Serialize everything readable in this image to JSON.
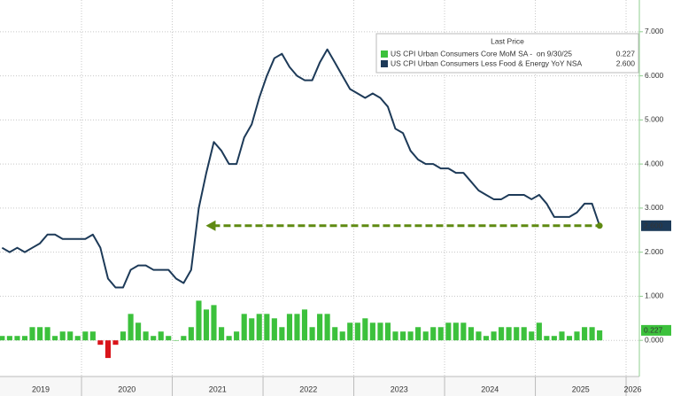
{
  "chart_data": {
    "type": "combo",
    "legend_title": "Last Price",
    "legend_position": "upper right",
    "grid": true,
    "x": [
      2019.125,
      2019.208,
      2019.292,
      2019.375,
      2019.458,
      2019.542,
      2019.625,
      2019.708,
      2019.792,
      2019.875,
      2019.958,
      2020.042,
      2020.125,
      2020.208,
      2020.292,
      2020.375,
      2020.458,
      2020.542,
      2020.625,
      2020.708,
      2020.792,
      2020.875,
      2020.958,
      2021.042,
      2021.125,
      2021.208,
      2021.292,
      2021.375,
      2021.458,
      2021.542,
      2021.625,
      2021.708,
      2021.792,
      2021.875,
      2021.958,
      2022.042,
      2022.125,
      2022.208,
      2022.292,
      2022.375,
      2022.458,
      2022.542,
      2022.625,
      2022.708,
      2022.792,
      2022.875,
      2022.958,
      2023.042,
      2023.125,
      2023.208,
      2023.292,
      2023.375,
      2023.458,
      2023.542,
      2023.625,
      2023.708,
      2023.792,
      2023.875,
      2023.958,
      2024.042,
      2024.125,
      2024.208,
      2024.292,
      2024.375,
      2024.458,
      2024.542,
      2024.625,
      2024.708,
      2024.792,
      2024.875,
      2024.958,
      2025.042,
      2025.125,
      2025.208,
      2025.292,
      2025.375,
      2025.458,
      2025.542,
      2025.625,
      2025.708
    ],
    "xlim": [
      2019.102,
      2026.146
    ],
    "xticks": [
      2019,
      2020,
      2021,
      2022,
      2023,
      2024,
      2025,
      2026
    ],
    "ylim": [
      -0.82,
      7.72
    ],
    "yticks": [
      {
        "value": 7,
        "label": "7.000"
      },
      {
        "value": 6,
        "label": "6.000"
      },
      {
        "value": 5,
        "label": "5.000"
      },
      {
        "value": 4,
        "label": "4.000"
      },
      {
        "value": 3,
        "label": "3.000"
      },
      {
        "value": 2,
        "label": "2.000"
      },
      {
        "value": 1,
        "label": "1.000"
      },
      {
        "value": 0,
        "label": "0.000"
      }
    ],
    "series": [
      {
        "name": "US CPI Urban Consumers Core MoM SA -  on 9/30/25",
        "kind": "bar",
        "color": "#3cc13c",
        "negative_color": "#d9141a",
        "last_label": "0.227",
        "values": [
          0.1,
          0.1,
          0.1,
          0.1,
          0.3,
          0.3,
          0.3,
          0.1,
          0.2,
          0.2,
          0.1,
          0.2,
          0.2,
          -0.1,
          -0.4,
          -0.1,
          0.2,
          0.6,
          0.4,
          0.2,
          0.1,
          0.2,
          0.1,
          0,
          0.1,
          0.3,
          0.9,
          0.7,
          0.8,
          0.3,
          0.1,
          0.2,
          0.6,
          0.5,
          0.6,
          0.6,
          0.5,
          0.3,
          0.6,
          0.6,
          0.7,
          0.3,
          0.6,
          0.6,
          0.3,
          0.2,
          0.4,
          0.4,
          0.5,
          0.4,
          0.4,
          0.4,
          0.2,
          0.2,
          0.2,
          0.3,
          0.2,
          0.3,
          0.3,
          0.4,
          0.4,
          0.4,
          0.3,
          0.2,
          0.1,
          0.2,
          0.3,
          0.3,
          0.3,
          0.3,
          0.2,
          0.4,
          0.1,
          0.1,
          0.2,
          0.1,
          0.2,
          0.3,
          0.3,
          0.227
        ]
      },
      {
        "name": "US CPI Urban Consumers Less Food & Energy YoY NSA",
        "kind": "line",
        "color": "#1d3a58",
        "last_label": "2.600",
        "values": [
          2.1,
          2.0,
          2.1,
          2.0,
          2.1,
          2.2,
          2.4,
          2.4,
          2.3,
          2.3,
          2.3,
          2.3,
          2.4,
          2.1,
          1.4,
          1.2,
          1.2,
          1.6,
          1.7,
          1.7,
          1.6,
          1.6,
          1.6,
          1.4,
          1.3,
          1.6,
          3.0,
          3.8,
          4.5,
          4.3,
          4.0,
          4.0,
          4.6,
          4.9,
          5.5,
          6.0,
          6.4,
          6.5,
          6.2,
          6.0,
          5.9,
          5.9,
          6.3,
          6.6,
          6.3,
          6.0,
          5.7,
          5.6,
          5.5,
          5.6,
          5.5,
          5.3,
          4.8,
          4.7,
          4.3,
          4.1,
          4.0,
          4.0,
          3.9,
          3.9,
          3.8,
          3.8,
          3.6,
          3.4,
          3.3,
          3.2,
          3.2,
          3.3,
          3.3,
          3.3,
          3.2,
          3.3,
          3.1,
          2.8,
          2.8,
          2.8,
          2.9,
          3.1,
          3.1,
          2.6
        ]
      }
    ],
    "reference_arrow": {
      "value": 2.6,
      "x_from": 2021.37,
      "x_to": 2025.708,
      "color": "#5f8a12"
    }
  }
}
